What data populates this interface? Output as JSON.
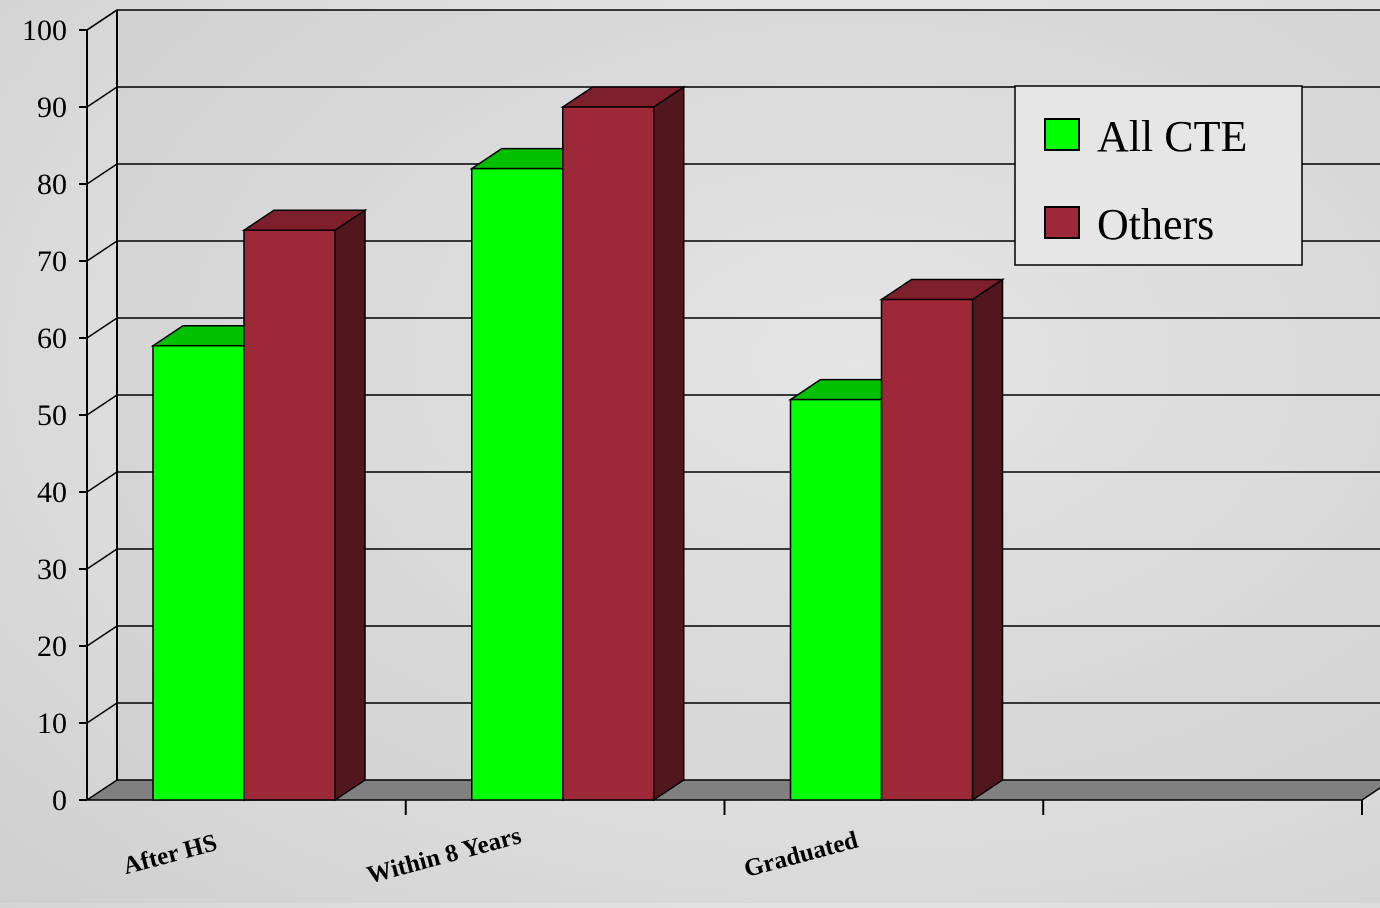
{
  "chart_data": {
    "type": "bar",
    "style": "3d-clustered-column",
    "categories": [
      "After HS",
      "Within 8 Years",
      "Graduated",
      ""
    ],
    "series": [
      {
        "name": "All CTE",
        "values": [
          59,
          82,
          52,
          null
        ],
        "color": "#00ff00",
        "top_color": "#00c000"
      },
      {
        "name": "Others",
        "values": [
          74,
          90,
          65,
          null
        ],
        "color": "#9c2838",
        "top_color": "#7e1f2c",
        "side_color": "#52161e"
      }
    ],
    "ylim": [
      0,
      100
    ],
    "yticks": [
      0,
      10,
      20,
      30,
      40,
      50,
      60,
      70,
      80,
      90,
      100
    ],
    "grid": true,
    "legend": {
      "position": "top-right"
    },
    "title": "",
    "xlabel": "",
    "ylabel": ""
  },
  "colors": {
    "floor": "#808080",
    "wall": "#c8c8c8",
    "axis": "#000000"
  }
}
